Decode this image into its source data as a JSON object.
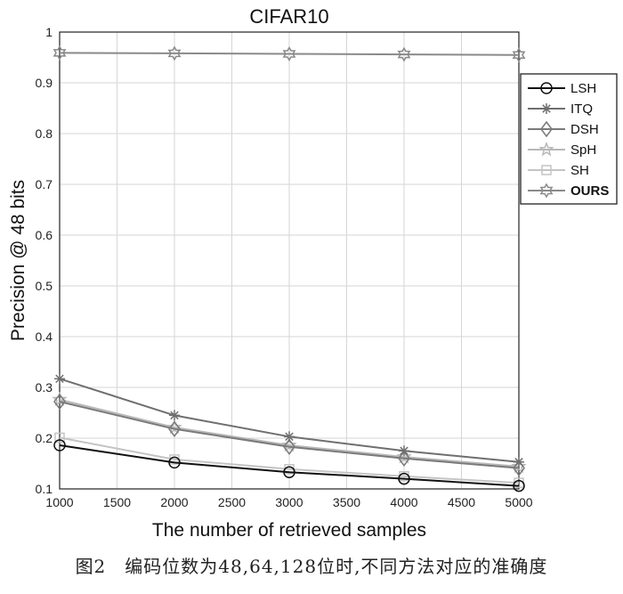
{
  "chart_data": {
    "type": "line",
    "title": "CIFAR10",
    "xlabel": "The number of retrieved samples",
    "ylabel": "Precision @ 48 bits",
    "x": [
      1000,
      2000,
      3000,
      4000,
      5000
    ],
    "xlim": [
      1000,
      5000
    ],
    "ylim": [
      0.1,
      1
    ],
    "xticks": [
      1000,
      1500,
      2000,
      2500,
      3000,
      3500,
      4000,
      4500,
      5000
    ],
    "yticks": [
      0.1,
      0.2,
      0.3,
      0.4,
      0.5,
      0.6,
      0.7,
      0.8,
      0.9,
      1
    ],
    "ytick_labels": [
      "0.1",
      "0.2",
      "0.3",
      "0.4",
      "0.5",
      "0.6",
      "0.7",
      "0.8",
      "0.9",
      "1"
    ],
    "grid": true,
    "legend_position": "top-right",
    "series": [
      {
        "name": "LSH",
        "marker": "circle",
        "color": "#111111",
        "values": [
          0.186,
          0.152,
          0.133,
          0.12,
          0.106
        ]
      },
      {
        "name": "ITQ",
        "marker": "asterisk",
        "color": "#6f6f6f",
        "values": [
          0.317,
          0.245,
          0.203,
          0.175,
          0.153
        ]
      },
      {
        "name": "DSH",
        "marker": "diamond",
        "color": "#7a7a7a",
        "values": [
          0.272,
          0.218,
          0.183,
          0.16,
          0.141
        ]
      },
      {
        "name": "SpH",
        "marker": "star",
        "color": "#b8b8b8",
        "values": [
          0.276,
          0.221,
          0.186,
          0.163,
          0.144
        ]
      },
      {
        "name": "SH",
        "marker": "square",
        "color": "#c4c4c4",
        "values": [
          0.201,
          0.158,
          0.139,
          0.125,
          0.112
        ]
      },
      {
        "name": "OURS",
        "marker": "hexagram",
        "color": "#8a8a8a",
        "values": [
          0.959,
          0.958,
          0.957,
          0.956,
          0.955
        ]
      }
    ]
  },
  "caption": "图2　编码位数为48,64,128位时,不同方法对应的准确度"
}
